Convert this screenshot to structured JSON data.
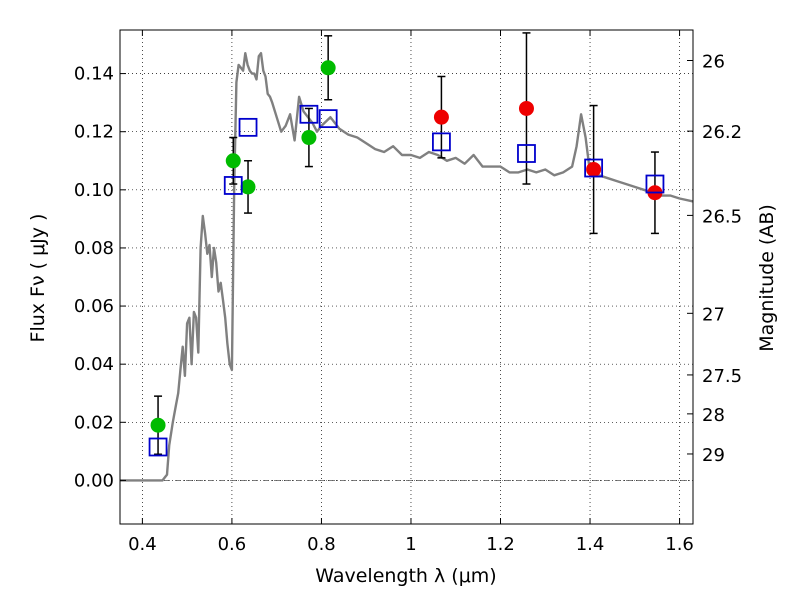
{
  "chart_data": {
    "type": "scatter",
    "xlabel": "Wavelength  λ (μm)",
    "ylabel": "Flux  Fν  ( μJy )",
    "ylabel_right": "Magnitude (AB)",
    "xlim": [
      0.35,
      1.63
    ],
    "ylim": [
      -0.015,
      0.155
    ],
    "grid": true,
    "x_ticks": [
      {
        "value": 0.4,
        "label": "0.4"
      },
      {
        "value": 0.6,
        "label": "0.6"
      },
      {
        "value": 0.8,
        "label": "0.8"
      },
      {
        "value": 1.0,
        "label": "1"
      },
      {
        "value": 1.2,
        "label": "1.2"
      },
      {
        "value": 1.4,
        "label": "1.4"
      },
      {
        "value": 1.6,
        "label": "1.6"
      }
    ],
    "y_ticks": [
      {
        "value": 0.0,
        "label": "0.00"
      },
      {
        "value": 0.02,
        "label": "0.02"
      },
      {
        "value": 0.04,
        "label": "0.04"
      },
      {
        "value": 0.06,
        "label": "0.06"
      },
      {
        "value": 0.08,
        "label": "0.08"
      },
      {
        "value": 0.1,
        "label": "0.10"
      },
      {
        "value": 0.12,
        "label": "0.12"
      },
      {
        "value": 0.14,
        "label": "0.14"
      }
    ],
    "mag_ticks": [
      {
        "flux": 0.1445,
        "label": "26"
      },
      {
        "flux": 0.1202,
        "label": "26.2"
      },
      {
        "flux": 0.0912,
        "label": "26.5"
      },
      {
        "flux": 0.0575,
        "label": "27"
      },
      {
        "flux": 0.0363,
        "label": "27.5"
      },
      {
        "flux": 0.0229,
        "label": "28"
      },
      {
        "flux": 0.0091,
        "label": "29"
      }
    ],
    "colors": {
      "model": "#808080",
      "green": "#00bb00",
      "red": "#ee0000",
      "squares": "#0000cc",
      "errorbar": "#000000"
    },
    "series": [
      {
        "kind": "model_line",
        "x": [
          0.35,
          0.4,
          0.43,
          0.445,
          0.455,
          0.46,
          0.468,
          0.475,
          0.48,
          0.485,
          0.49,
          0.495,
          0.5,
          0.505,
          0.51,
          0.515,
          0.52,
          0.525,
          0.53,
          0.535,
          0.54,
          0.545,
          0.55,
          0.555,
          0.56,
          0.565,
          0.57,
          0.575,
          0.58,
          0.585,
          0.59,
          0.595,
          0.6,
          0.605,
          0.61,
          0.615,
          0.62,
          0.625,
          0.63,
          0.635,
          0.64,
          0.645,
          0.65,
          0.655,
          0.66,
          0.665,
          0.67,
          0.675,
          0.68,
          0.685,
          0.69,
          0.7,
          0.71,
          0.72,
          0.73,
          0.74,
          0.75,
          0.76,
          0.77,
          0.78,
          0.79,
          0.8,
          0.82,
          0.84,
          0.86,
          0.88,
          0.9,
          0.92,
          0.94,
          0.96,
          0.98,
          1.0,
          1.02,
          1.04,
          1.06,
          1.08,
          1.1,
          1.12,
          1.14,
          1.16,
          1.18,
          1.2,
          1.22,
          1.24,
          1.26,
          1.28,
          1.3,
          1.32,
          1.34,
          1.36,
          1.37,
          1.38,
          1.39,
          1.4,
          1.42,
          1.44,
          1.46,
          1.48,
          1.5,
          1.52,
          1.54,
          1.56,
          1.58,
          1.6,
          1.63
        ],
        "y": [
          0.0,
          0.0,
          0.0,
          0.0,
          0.002,
          0.012,
          0.02,
          0.026,
          0.03,
          0.038,
          0.046,
          0.036,
          0.054,
          0.056,
          0.04,
          0.058,
          0.056,
          0.044,
          0.08,
          0.091,
          0.085,
          0.078,
          0.081,
          0.07,
          0.08,
          0.075,
          0.065,
          0.068,
          0.062,
          0.056,
          0.047,
          0.04,
          0.038,
          0.101,
          0.137,
          0.143,
          0.142,
          0.141,
          0.147,
          0.143,
          0.141,
          0.14,
          0.14,
          0.138,
          0.146,
          0.147,
          0.141,
          0.139,
          0.133,
          0.132,
          0.13,
          0.125,
          0.12,
          0.122,
          0.126,
          0.117,
          0.132,
          0.127,
          0.125,
          0.123,
          0.12,
          0.122,
          0.125,
          0.121,
          0.119,
          0.118,
          0.116,
          0.114,
          0.113,
          0.115,
          0.112,
          0.112,
          0.111,
          0.113,
          0.112,
          0.11,
          0.111,
          0.109,
          0.112,
          0.108,
          0.108,
          0.108,
          0.106,
          0.106,
          0.107,
          0.106,
          0.107,
          0.105,
          0.106,
          0.108,
          0.115,
          0.126,
          0.118,
          0.106,
          0.105,
          0.104,
          0.103,
          0.102,
          0.101,
          0.1,
          0.099,
          0.098,
          0.098,
          0.097,
          0.096
        ]
      },
      {
        "kind": "green_points",
        "points": [
          {
            "x": 0.435,
            "y": 0.019,
            "err": 0.01
          },
          {
            "x": 0.603,
            "y": 0.11,
            "err": 0.008
          },
          {
            "x": 0.636,
            "y": 0.101,
            "err": 0.009
          },
          {
            "x": 0.772,
            "y": 0.118,
            "err": 0.01
          },
          {
            "x": 0.815,
            "y": 0.142,
            "err": 0.011
          }
        ]
      },
      {
        "kind": "red_points",
        "points": [
          {
            "x": 1.068,
            "y": 0.125,
            "err": 0.014
          },
          {
            "x": 1.258,
            "y": 0.128,
            "err": 0.026
          },
          {
            "x": 1.408,
            "y": 0.107,
            "err": 0.022
          },
          {
            "x": 1.545,
            "y": 0.099,
            "err": 0.014
          }
        ]
      },
      {
        "kind": "model_squares",
        "points": [
          {
            "x": 0.435,
            "y": 0.0115
          },
          {
            "x": 0.603,
            "y": 0.1015
          },
          {
            "x": 0.636,
            "y": 0.1215
          },
          {
            "x": 0.772,
            "y": 0.126
          },
          {
            "x": 0.815,
            "y": 0.1245
          },
          {
            "x": 1.068,
            "y": 0.1165
          },
          {
            "x": 1.258,
            "y": 0.1125
          },
          {
            "x": 1.408,
            "y": 0.1075
          },
          {
            "x": 1.545,
            "y": 0.102
          }
        ]
      }
    ]
  }
}
